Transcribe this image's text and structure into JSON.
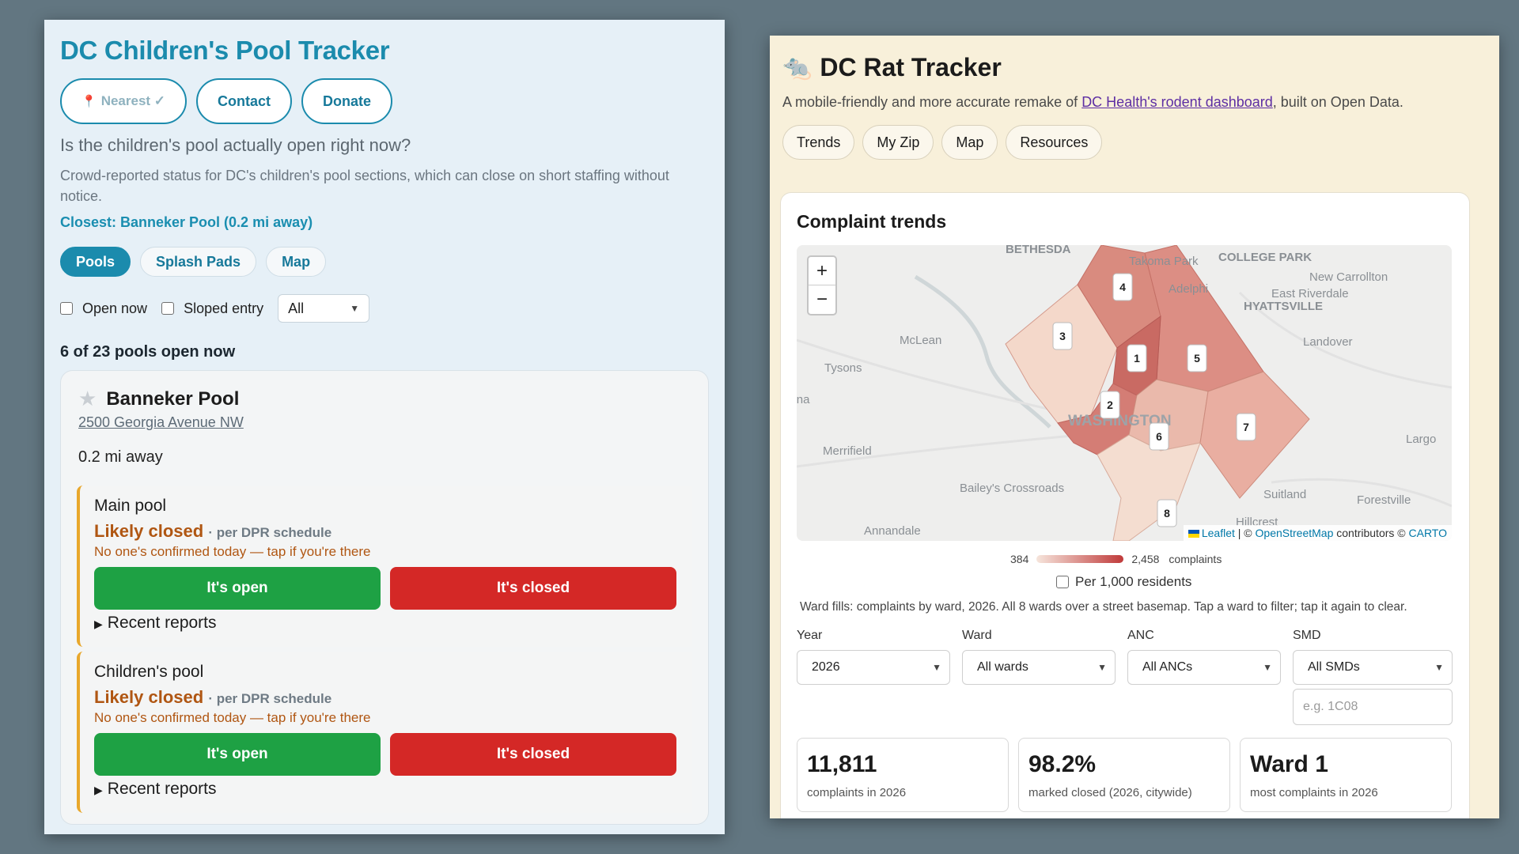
{
  "pool_app": {
    "title": "DC Children's Pool Tracker",
    "nav": {
      "nearest": "Nearest ✓",
      "contact": "Contact",
      "donate": "Donate"
    },
    "question": "Is the children's pool actually open right now?",
    "description": "Crowd-reported status for DC's children's pool sections, which can close on short staffing without notice.",
    "closest": "Closest: Banneker Pool (0.2 mi away)",
    "tabs": [
      "Pools",
      "Splash Pads",
      "Map"
    ],
    "filters": {
      "open_now": "Open now",
      "sloped_entry": "Sloped entry",
      "select_value": "All"
    },
    "count_text": "6 of 23 pools open now",
    "card": {
      "name": "Banneker Pool",
      "address": "2500 Georgia Avenue NW",
      "distance": "0.2 mi away",
      "sections": [
        {
          "title": "Main pool",
          "status": "Likely closed",
          "status_sub": "· per DPR schedule",
          "note": "No one's confirmed today — tap if you're there",
          "open_label": "It's open",
          "closed_label": "It's closed",
          "recent": "Recent reports"
        },
        {
          "title": "Children's pool",
          "status": "Likely closed",
          "status_sub": "· per DPR schedule",
          "note": "No one's confirmed today — tap if you're there",
          "open_label": "It's open",
          "closed_label": "It's closed",
          "recent": "Recent reports"
        }
      ]
    },
    "colors": {
      "accent": "#1b8bad",
      "open": "#1ea144",
      "closed": "#d42826",
      "warn": "#b05612"
    }
  },
  "rat_app": {
    "title": "DC Rat Tracker",
    "icon": "rat-icon",
    "subtitle_pre": "A mobile-friendly and more accurate remake of ",
    "subtitle_link": "DC Health's rodent dashboard",
    "subtitle_post": ", built on Open Data.",
    "nav": [
      "Trends",
      "My Zip",
      "Map",
      "Resources"
    ],
    "card_title": "Complaint trends",
    "map": {
      "place_labels": [
        "BETHESDA",
        "Takoma Park",
        "COLLEGE PARK",
        "New Carrollton",
        "Adelphi",
        "East Riverdale",
        "HYATTSVILLE",
        "McLean",
        "Landover",
        "Tysons",
        "WASHINGTON",
        "Largo",
        "Merrifield",
        "Bailey's Crossroads",
        "Suitland",
        "Forestville",
        "Annandale",
        "Hillcrest",
        "Vienna"
      ],
      "ward_labels": [
        "1",
        "2",
        "3",
        "4",
        "5",
        "6",
        "7",
        "8"
      ],
      "attribution": {
        "leaflet": "Leaflet",
        "sep": " | © ",
        "osm": "OpenStreetMap",
        "mid": " contributors © ",
        "carto": "CARTO"
      }
    },
    "legend": {
      "min": "384",
      "max": "2,458",
      "unit": "complaints"
    },
    "per_1000": "Per 1,000 residents",
    "ward_note": "Ward fills: complaints by ward, 2026. All 8 wards over a street basemap. Tap a ward to filter; tap it again to clear.",
    "filters": {
      "year": {
        "label": "Year",
        "value": "2026"
      },
      "ward": {
        "label": "Ward",
        "value": "All wards"
      },
      "anc": {
        "label": "ANC",
        "value": "All ANCs"
      },
      "smd": {
        "label": "SMD",
        "value": "All SMDs",
        "placeholder": "e.g. 1C08"
      }
    },
    "stats": [
      {
        "value": "11,811",
        "label": "complaints in 2026"
      },
      {
        "value": "98.2%",
        "label": "marked closed (2026, citywide)"
      },
      {
        "value": "Ward 1",
        "label": "most complaints in 2026"
      }
    ]
  }
}
